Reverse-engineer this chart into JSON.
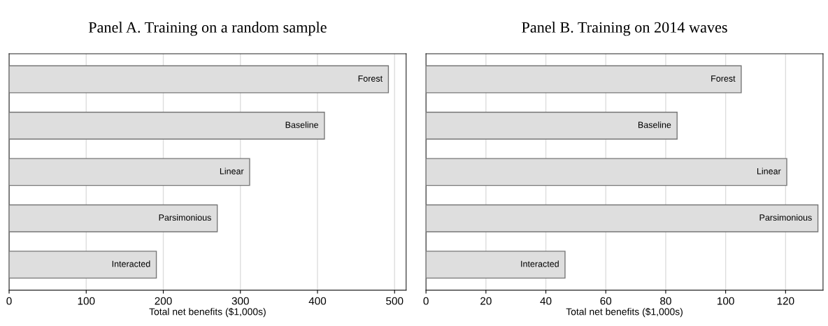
{
  "chart_data": [
    {
      "type": "bar",
      "orientation": "horizontal",
      "title": "Panel A. Training on a random sample",
      "xlabel": "Total net benefits ($1,000s)",
      "categories": [
        "Forest",
        "Baseline",
        "Linear",
        "Parsimonious",
        "Interacted"
      ],
      "values": [
        492,
        409,
        312,
        270,
        191
      ],
      "color": "#dedede",
      "xlim": [
        0,
        515
      ],
      "xticks": [
        0,
        100,
        200,
        300,
        400,
        500
      ],
      "grid": "x",
      "tick_labels": "x"
    },
    {
      "type": "bar",
      "orientation": "horizontal",
      "title": "Panel B. Training on 2014 waves",
      "xlabel": "Total net benefits ($1,000s)",
      "categories": [
        "Forest",
        "Baseline",
        "Linear",
        "Parsimonious",
        "Interacted"
      ],
      "values": [
        105.2,
        83.8,
        120.4,
        130.8,
        46.4
      ],
      "color": "#dedede",
      "xlim": [
        0,
        132.5
      ],
      "xticks": [
        0,
        20,
        40,
        60,
        80,
        100,
        120
      ],
      "grid": "x",
      "tick_labels": "x"
    }
  ]
}
